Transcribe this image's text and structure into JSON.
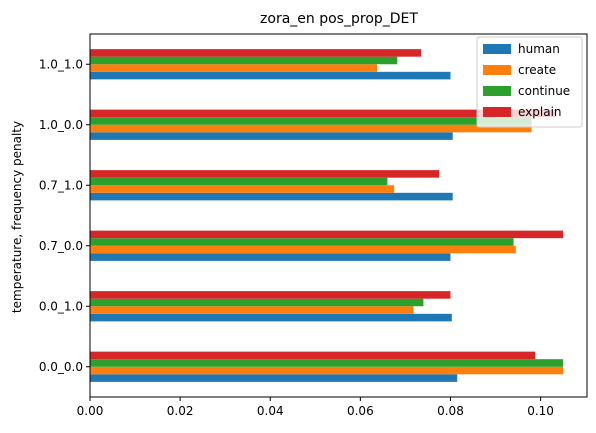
{
  "chart_data": {
    "type": "bar",
    "orientation": "horizontal",
    "title": "zora_en pos_prop_DET",
    "xlabel": "",
    "ylabel": "temperature, frequency penalty",
    "categories": [
      "0.0_0.0",
      "0.0_1.0",
      "0.7_0.0",
      "0.7_1.0",
      "1.0_0.0",
      "1.0_1.0"
    ],
    "series": [
      {
        "name": "human",
        "color": "#1f77b4",
        "values": [
          0.0815,
          0.0803,
          0.08,
          0.0805,
          0.0805,
          0.08
        ]
      },
      {
        "name": "create",
        "color": "#ff7f0e",
        "values": [
          0.105,
          0.0718,
          0.0945,
          0.0675,
          0.098,
          0.0637
        ]
      },
      {
        "name": "continue",
        "color": "#2ca02c",
        "values": [
          0.105,
          0.074,
          0.094,
          0.066,
          0.098,
          0.0682
        ]
      },
      {
        "name": "explain",
        "color": "#d62728",
        "values": [
          0.0988,
          0.08,
          0.105,
          0.0775,
          0.1035,
          0.0735
        ]
      }
    ],
    "xlim": [
      0,
      0.1103
    ],
    "xticks": [
      "0.00",
      "0.02",
      "0.04",
      "0.06",
      "0.08",
      "0.10"
    ],
    "xtick_values": [
      0,
      0.02,
      0.04,
      0.06,
      0.08,
      0.1
    ],
    "grid": false,
    "legend_position": "top-right"
  }
}
